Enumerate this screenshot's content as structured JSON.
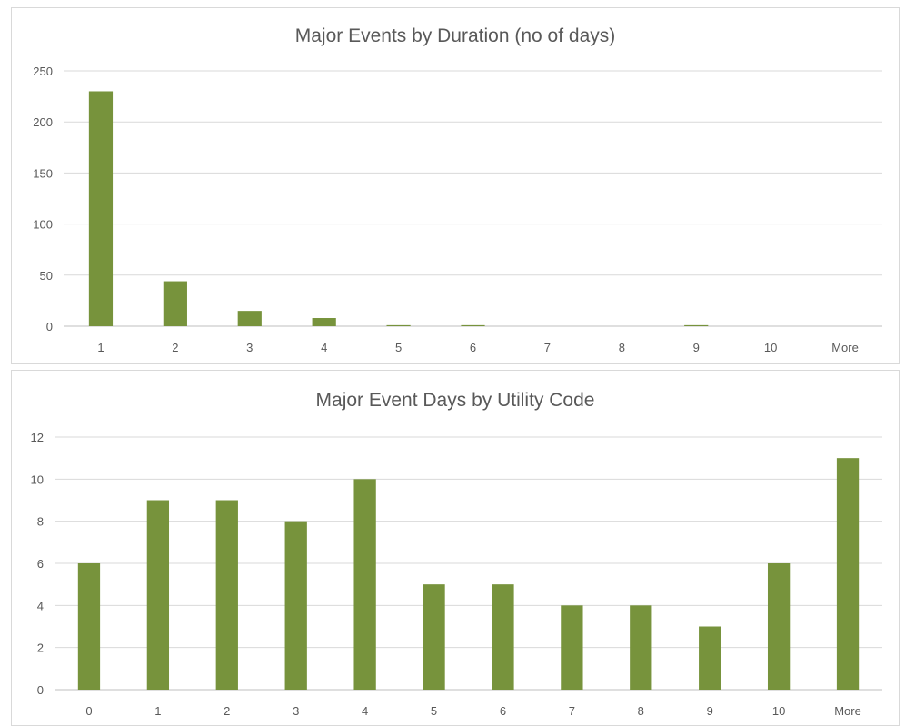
{
  "colors": {
    "bar": "#77933c",
    "grid": "#d9d9d9",
    "axis": "#bfbfbf",
    "text": "#595959"
  },
  "chart_data": [
    {
      "type": "bar",
      "title": "Major Events by Duration (no of days)",
      "categories": [
        "1",
        "2",
        "3",
        "4",
        "5",
        "6",
        "7",
        "8",
        "9",
        "10",
        "More"
      ],
      "values": [
        230,
        44,
        15,
        8,
        1,
        1,
        0,
        0,
        1,
        0,
        0
      ],
      "ylim": [
        0,
        250
      ],
      "yticks": [
        0,
        50,
        100,
        150,
        200,
        250
      ],
      "grid": true,
      "legend": "none"
    },
    {
      "type": "bar",
      "title": "Major Event Days by Utility Code",
      "categories": [
        "0",
        "1",
        "2",
        "3",
        "4",
        "5",
        "6",
        "7",
        "8",
        "9",
        "10",
        "More"
      ],
      "values": [
        6,
        9,
        9,
        8,
        10,
        5,
        5,
        4,
        4,
        3,
        6,
        11
      ],
      "ylim": [
        0,
        12
      ],
      "yticks": [
        0,
        2,
        4,
        6,
        8,
        10,
        12
      ],
      "grid": true,
      "legend": "none"
    }
  ]
}
